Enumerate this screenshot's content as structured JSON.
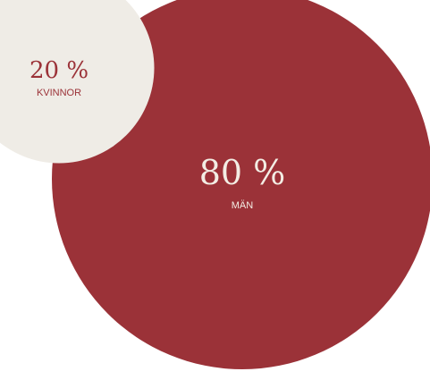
{
  "chart_data": {
    "type": "bubble",
    "title": "",
    "series": [
      {
        "name": "MÄN",
        "value": 80,
        "value_label": "80 %",
        "color": "#9b3238"
      },
      {
        "name": "KVINNOR",
        "value": 20,
        "value_label": "20 %",
        "color": "#efece6"
      }
    ],
    "colors": {
      "text_on_dark": "#f3ede4",
      "text_on_light": "#9b3238"
    }
  }
}
